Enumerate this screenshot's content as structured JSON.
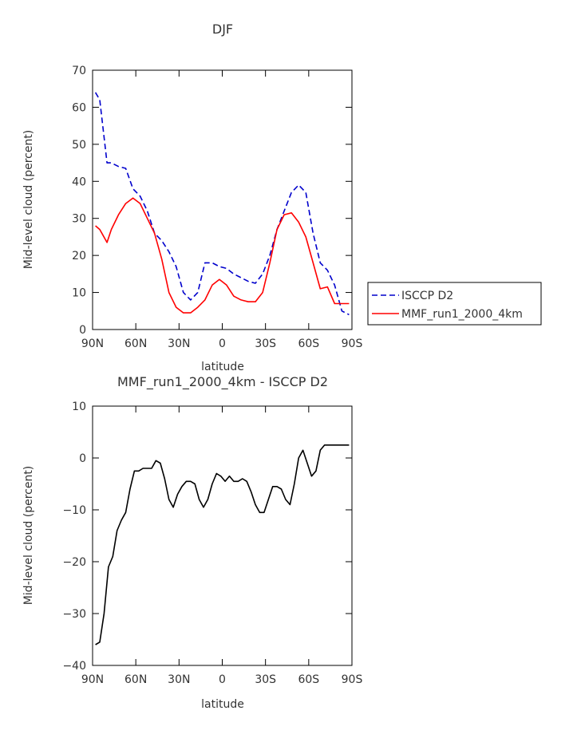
{
  "chart_data": [
    {
      "type": "line",
      "title": "DJF",
      "xlabel": "latitude",
      "ylabel": "Mid-level cloud (percent)",
      "xlim": [
        -90,
        90
      ],
      "ylim": [
        0,
        70
      ],
      "xticks": [
        -90,
        -60,
        -30,
        0,
        30,
        60,
        90
      ],
      "xtick_labels": [
        "90N",
        "60N",
        "30N",
        "0",
        "30S",
        "60S",
        "90S"
      ],
      "yticks": [
        0,
        10,
        20,
        30,
        40,
        50,
        60,
        70
      ],
      "ytick_labels": [
        "0",
        "10",
        "20",
        "30",
        "40",
        "50",
        "60",
        "70"
      ],
      "legend_position": "right",
      "series": [
        {
          "name": "ISCCP D2",
          "color": "#0000cc",
          "dash": "dashed",
          "x": [
            -88,
            -85,
            -80,
            -77,
            -72,
            -67,
            -62,
            -57,
            -52,
            -47,
            -42,
            -37,
            -32,
            -27,
            -22,
            -17,
            -12,
            -7,
            -2,
            3,
            8,
            13,
            18,
            23,
            28,
            33,
            38,
            43,
            48,
            53,
            58,
            63,
            68,
            73,
            78,
            83,
            88
          ],
          "y": [
            64,
            62,
            45,
            45,
            44,
            43.5,
            38,
            36,
            32,
            26,
            24,
            21,
            17,
            10,
            8,
            10,
            18,
            18,
            17,
            16.5,
            15,
            14,
            13,
            12.5,
            15,
            20,
            27,
            32,
            37,
            39,
            37,
            26,
            18,
            16,
            12,
            5,
            4
          ]
        },
        {
          "name": "MMF_run1_2000_4km",
          "color": "#ff0000",
          "dash": "solid",
          "x": [
            -88,
            -85,
            -80,
            -77,
            -72,
            -67,
            -62,
            -57,
            -52,
            -47,
            -42,
            -37,
            -32,
            -27,
            -22,
            -17,
            -12,
            -7,
            -2,
            3,
            8,
            13,
            18,
            23,
            28,
            33,
            38,
            43,
            48,
            53,
            58,
            63,
            68,
            73,
            78,
            83,
            88
          ],
          "y": [
            28,
            27,
            23.5,
            27,
            31,
            34,
            35.5,
            34,
            30,
            26,
            19,
            10,
            6,
            4.5,
            4.5,
            6,
            8,
            12,
            13.5,
            12,
            9,
            8,
            7.5,
            7.5,
            10,
            18,
            27,
            31,
            31.5,
            29,
            25,
            18,
            11,
            11.5,
            7,
            7,
            7
          ]
        }
      ]
    },
    {
      "type": "line",
      "title": "MMF_run1_2000_4km - ISCCP D2",
      "xlabel": "latitude",
      "ylabel": "Mid-level cloud (percent)",
      "xlim": [
        -90,
        90
      ],
      "ylim": [
        -40,
        10
      ],
      "xticks": [
        -90,
        -60,
        -30,
        0,
        30,
        60,
        90
      ],
      "xtick_labels": [
        "90N",
        "60N",
        "30N",
        "0",
        "30S",
        "60S",
        "90S"
      ],
      "yticks": [
        -40,
        -30,
        -20,
        -10,
        0,
        10
      ],
      "ytick_labels": [
        "-40",
        "-30",
        "-20",
        "-10",
        "0",
        "10"
      ],
      "series": [
        {
          "color": "#000000",
          "dash": "solid",
          "x": [
            -88,
            -85,
            -82,
            -79,
            -76,
            -73,
            -70,
            -67,
            -64,
            -61,
            -58,
            -55,
            -52,
            -49,
            -46,
            -43,
            -40,
            -37,
            -34,
            -31,
            -28,
            -25,
            -22,
            -19,
            -16,
            -13,
            -10,
            -7,
            -4,
            -1,
            2,
            5,
            8,
            11,
            14,
            17,
            20,
            23,
            26,
            29,
            32,
            35,
            38,
            41,
            44,
            47,
            50,
            53,
            56,
            59,
            62,
            65,
            68,
            71,
            74,
            77,
            80,
            83,
            86,
            88
          ],
          "y": [
            -36,
            -35.5,
            -30,
            -21,
            -19,
            -14,
            -12,
            -10.5,
            -6,
            -2.5,
            -2.5,
            -2,
            -2,
            -2,
            -0.5,
            -1,
            -4,
            -8,
            -9.5,
            -7,
            -5.5,
            -4.5,
            -4.5,
            -5,
            -8,
            -9.5,
            -8,
            -5,
            -3,
            -3.5,
            -4.5,
            -3.5,
            -4.5,
            -4.5,
            -4,
            -4.5,
            -6.5,
            -9,
            -10.5,
            -10.5,
            -8,
            -5.5,
            -5.5,
            -6,
            -8,
            -9,
            -5,
            0,
            1.5,
            -1,
            -3.5,
            -2.5,
            1.5,
            2.5,
            2.5,
            2.5,
            2.5,
            2.5,
            2.5,
            2.5
          ]
        }
      ]
    }
  ]
}
